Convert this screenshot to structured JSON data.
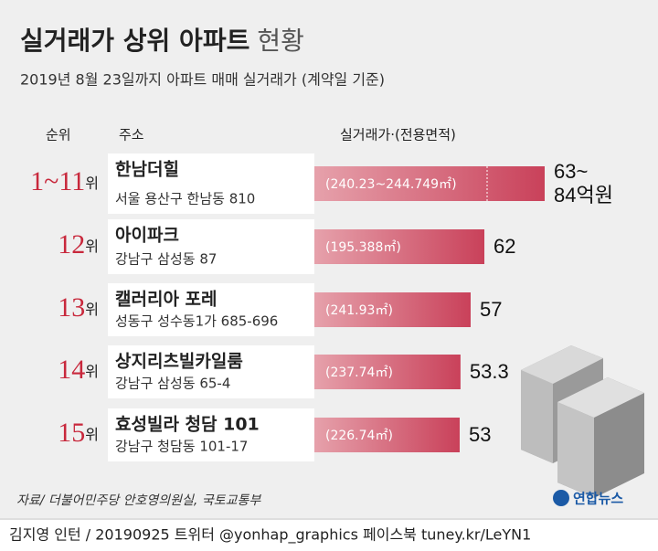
{
  "chart_data": {
    "type": "bar",
    "orientation": "horizontal",
    "title": "실거래가 상위 아파트",
    "title_suffix": "현황",
    "subtitle": "2019년 8월 23일까지 아파트 매매 실거래가 (계약일 기준)",
    "headers": [
      "순위",
      "주소",
      "실거래가·(전용면적)"
    ],
    "ranks": [
      "1~11",
      "12",
      "13",
      "14",
      "15"
    ],
    "rank_suffix": "위",
    "categories": [
      "한남더힐",
      "아이파크",
      "캘러리아 포레",
      "상지리츠빌카일룸",
      "효성빌라 청담 101"
    ],
    "addresses": [
      "서울 용산구 한남동 810",
      "강남구 삼성동 87",
      "성동구 성수동1가 685-696",
      "강남구 삼성동 65-4",
      "강남구 청담동 101-17"
    ],
    "areas": [
      "(240.23~244.749㎡)",
      "(195.388㎡)",
      "(241.93㎡)",
      "(237.74㎡)",
      "(226.74㎡)"
    ],
    "values": [
      84,
      62,
      57,
      53.3,
      53
    ],
    "range_start": [
      63,
      null,
      null,
      null,
      null
    ],
    "value_labels": [
      "63~ 84억원",
      "62",
      "57",
      "53.3",
      "53"
    ],
    "xlim": [
      0,
      100
    ],
    "color": "#c9415a",
    "source": "자료/ 더불어민주당 안호영의원실, 국토교통부",
    "logo": "연합뉴스",
    "footer": "김지영 인턴 / 20190925 트위터 @yonhap_graphics  페이스북 tuney.kr/LeYN1"
  }
}
